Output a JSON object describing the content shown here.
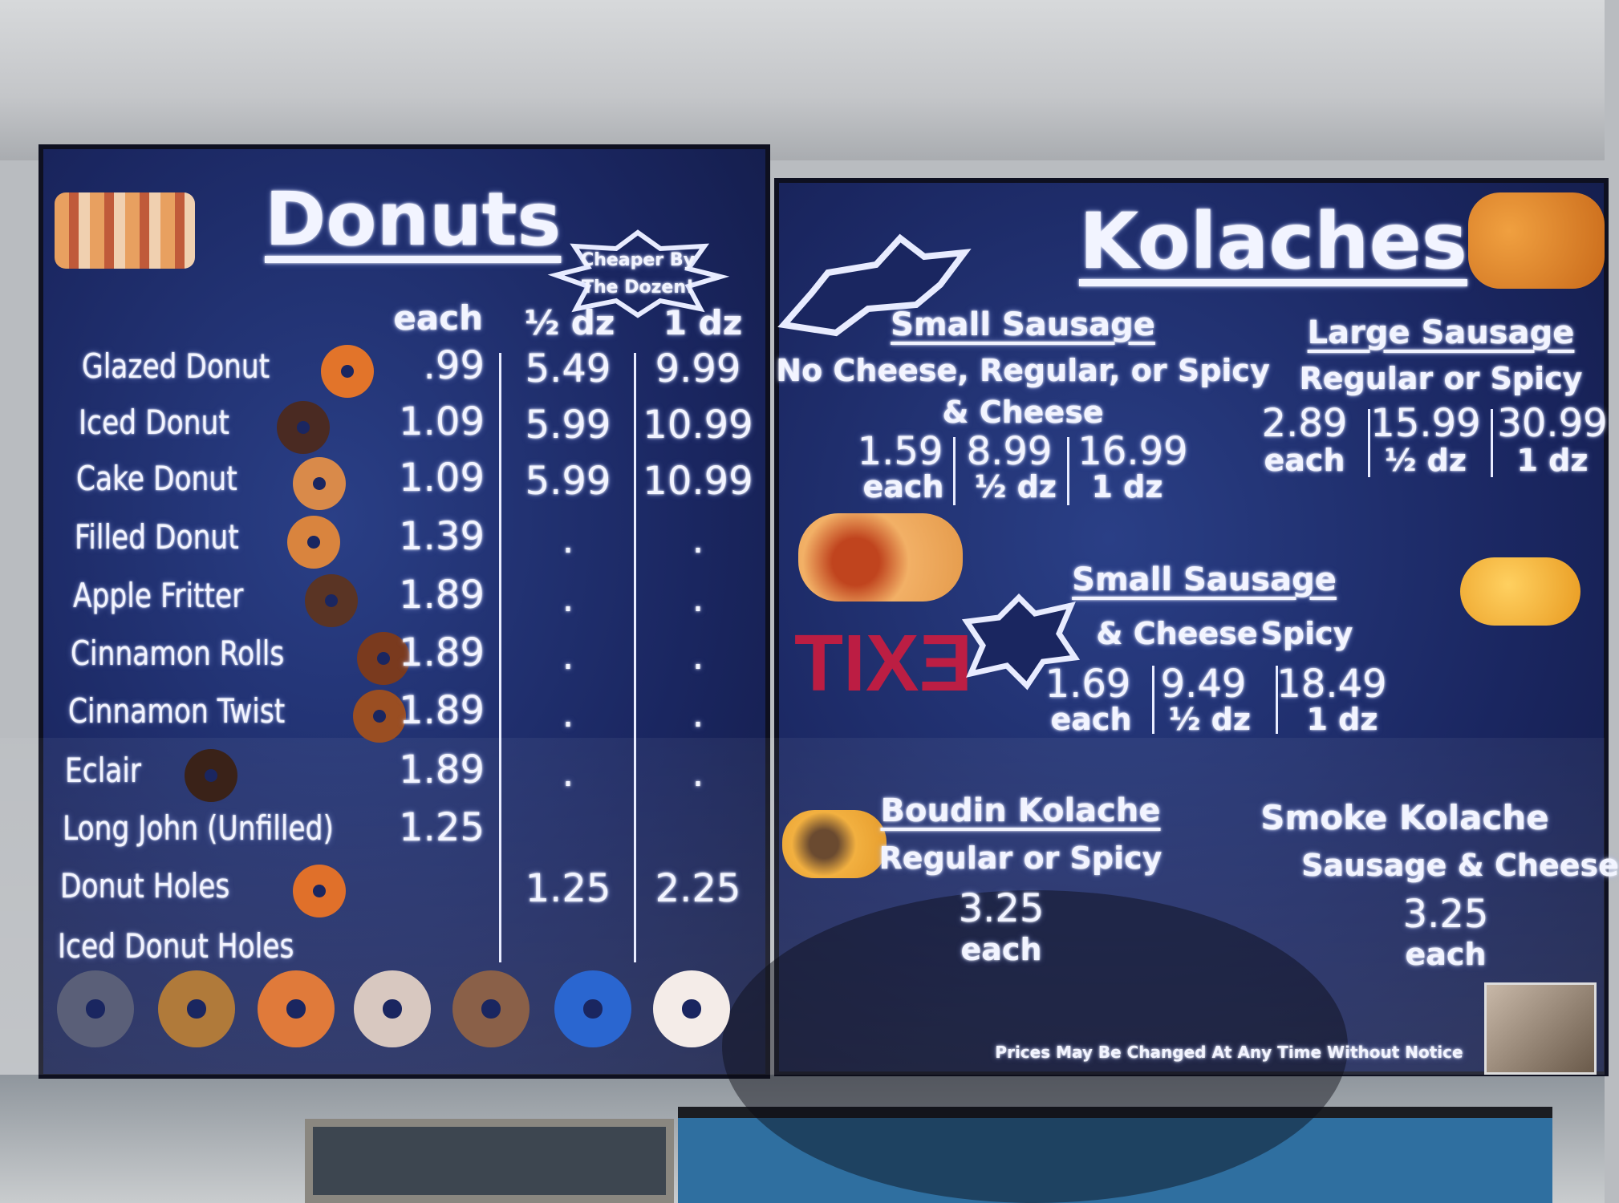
{
  "donuts": {
    "title": "Donuts",
    "promo": [
      "Cheaper By",
      "The Dozen!"
    ],
    "columns": [
      "each",
      "½ dz",
      "1 dz"
    ],
    "items": [
      {
        "name": "Glazed Donut",
        "each": ".99",
        "half": "5.49",
        "dozen": "9.99",
        "color": "#e2742a"
      },
      {
        "name": "Iced Donut",
        "each": "1.09",
        "half": "5.99",
        "dozen": "10.99",
        "color": "#4a2a22"
      },
      {
        "name": "Cake Donut",
        "each": "1.09",
        "half": "5.99",
        "dozen": "10.99",
        "color": "#d98a4a"
      },
      {
        "name": "Filled Donut",
        "each": "1.39",
        "half": ".",
        "dozen": ".",
        "color": "#d9843e"
      },
      {
        "name": "Apple Fritter",
        "each": "1.89",
        "half": ".",
        "dozen": ".",
        "color": "#5a3424"
      },
      {
        "name": "Cinnamon Rolls",
        "each": "1.89",
        "half": ".",
        "dozen": ".",
        "color": "#7a3a1e"
      },
      {
        "name": "Cinnamon Twist",
        "each": "1.89",
        "half": ".",
        "dozen": ".",
        "color": "#9a4e22"
      },
      {
        "name": "Eclair",
        "each": "1.89",
        "half": ".",
        "dozen": ".",
        "color": "#3a2218"
      },
      {
        "name": "Long John (Unfilled)",
        "each": "1.25",
        "half": "",
        "dozen": "",
        "color": ""
      },
      {
        "name": "Donut Holes",
        "each": "",
        "half": "1.25",
        "dozen": "2.25",
        "color": "#e0702a"
      },
      {
        "name": "Iced Donut Holes",
        "each": "",
        "half": "",
        "dozen": "",
        "color": ""
      }
    ],
    "iced_holes_colors": [
      "#5a5f78",
      "#b07a3a",
      "#e07a3a",
      "#d8c8c0",
      "#8a6048",
      "#2a66d0",
      "#f4ece8"
    ]
  },
  "kolaches": {
    "title": "Kolaches",
    "small_sausage": {
      "heading": "Small Sausage",
      "sub1": "No Cheese, Regular, or Spicy",
      "sub2": "& Cheese",
      "prices": [
        "1.59",
        "8.99",
        "16.99"
      ],
      "labels": [
        "each",
        "½ dz",
        "1 dz"
      ]
    },
    "large_sausage": {
      "heading": "Large Sausage",
      "sub": "Regular or Spicy",
      "prices": [
        "2.89",
        "15.99",
        "30.99"
      ],
      "labels": [
        "each",
        "½ dz",
        "1 dz"
      ]
    },
    "small_sausage_cheese": {
      "heading": "Small Sausage",
      "sub1": "& Cheese",
      "sub2": "Spicy",
      "prices": [
        "1.69",
        "9.49",
        "18.49"
      ],
      "labels": [
        "each",
        "½ dz",
        "1 dz"
      ]
    },
    "boudin": {
      "heading": "Boudin Kolache",
      "sub": "Regular or Spicy",
      "price": "3.25",
      "label": "each"
    },
    "smoke": {
      "heading": "Smoke Kolache",
      "sub": "Sausage & Cheese",
      "price": "3.25",
      "label": "each"
    },
    "notice": "Prices May Be Changed At Any Time Without Notice"
  },
  "exit_sign": "EXIT",
  "colors": {
    "board": "#1a2660",
    "text": "#f2f4ff",
    "exit": "#d81b3c"
  }
}
